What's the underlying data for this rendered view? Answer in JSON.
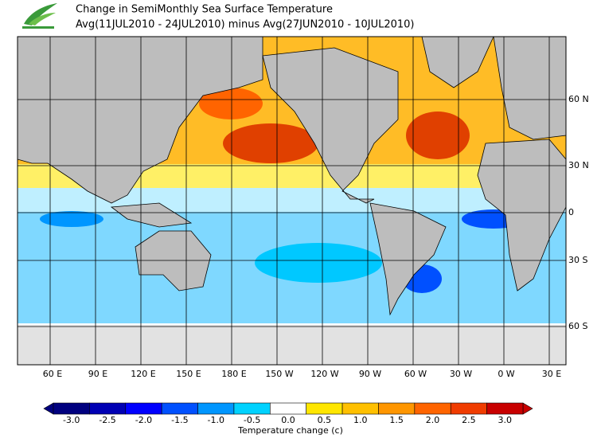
{
  "header": {
    "title": "Change in SemiMonthly Sea Surface Temperature",
    "subtitle": "Avg(11JUL2010 - 24JUL2010) minus Avg(27JUN2010 - 10JUL2010)"
  },
  "map": {
    "lon_labels": [
      "60 E",
      "90 E",
      "120 E",
      "150 E",
      "180 E",
      "150 W",
      "120 W",
      "90 W",
      "60 W",
      "30 W",
      "0 W",
      "30 E"
    ],
    "lat_labels": [
      "60 N",
      "30 N",
      "0",
      "30 S",
      "60 S"
    ]
  },
  "colorbar": {
    "label": "Temperature change  (c)",
    "ticks": [
      {
        "value": -3,
        "label": "-3.0"
      },
      {
        "value": -2.5,
        "label": "-2.5"
      },
      {
        "value": -2,
        "label": "-2.0"
      },
      {
        "value": -1.5,
        "label": "-1.5"
      },
      {
        "value": -1,
        "label": "-1.0"
      },
      {
        "value": -0.5,
        "label": "-0.5"
      },
      {
        "value": 0,
        "label": "0.0"
      },
      {
        "value": 0.5,
        "label": "0.5"
      },
      {
        "value": 1,
        "label": "1.0"
      },
      {
        "value": 1.5,
        "label": "1.5"
      },
      {
        "value": 2,
        "label": "2.0"
      },
      {
        "value": 2.5,
        "label": "2.5"
      },
      {
        "value": 3,
        "label": "3.0"
      }
    ],
    "colors": [
      "#00007f",
      "#0000b4",
      "#0000ff",
      "#0050ff",
      "#0096ff",
      "#00d2ff",
      "#ffffff",
      "#ffe600",
      "#ffc000",
      "#ff9600",
      "#ff6400",
      "#f03c00",
      "#c80000"
    ]
  }
}
